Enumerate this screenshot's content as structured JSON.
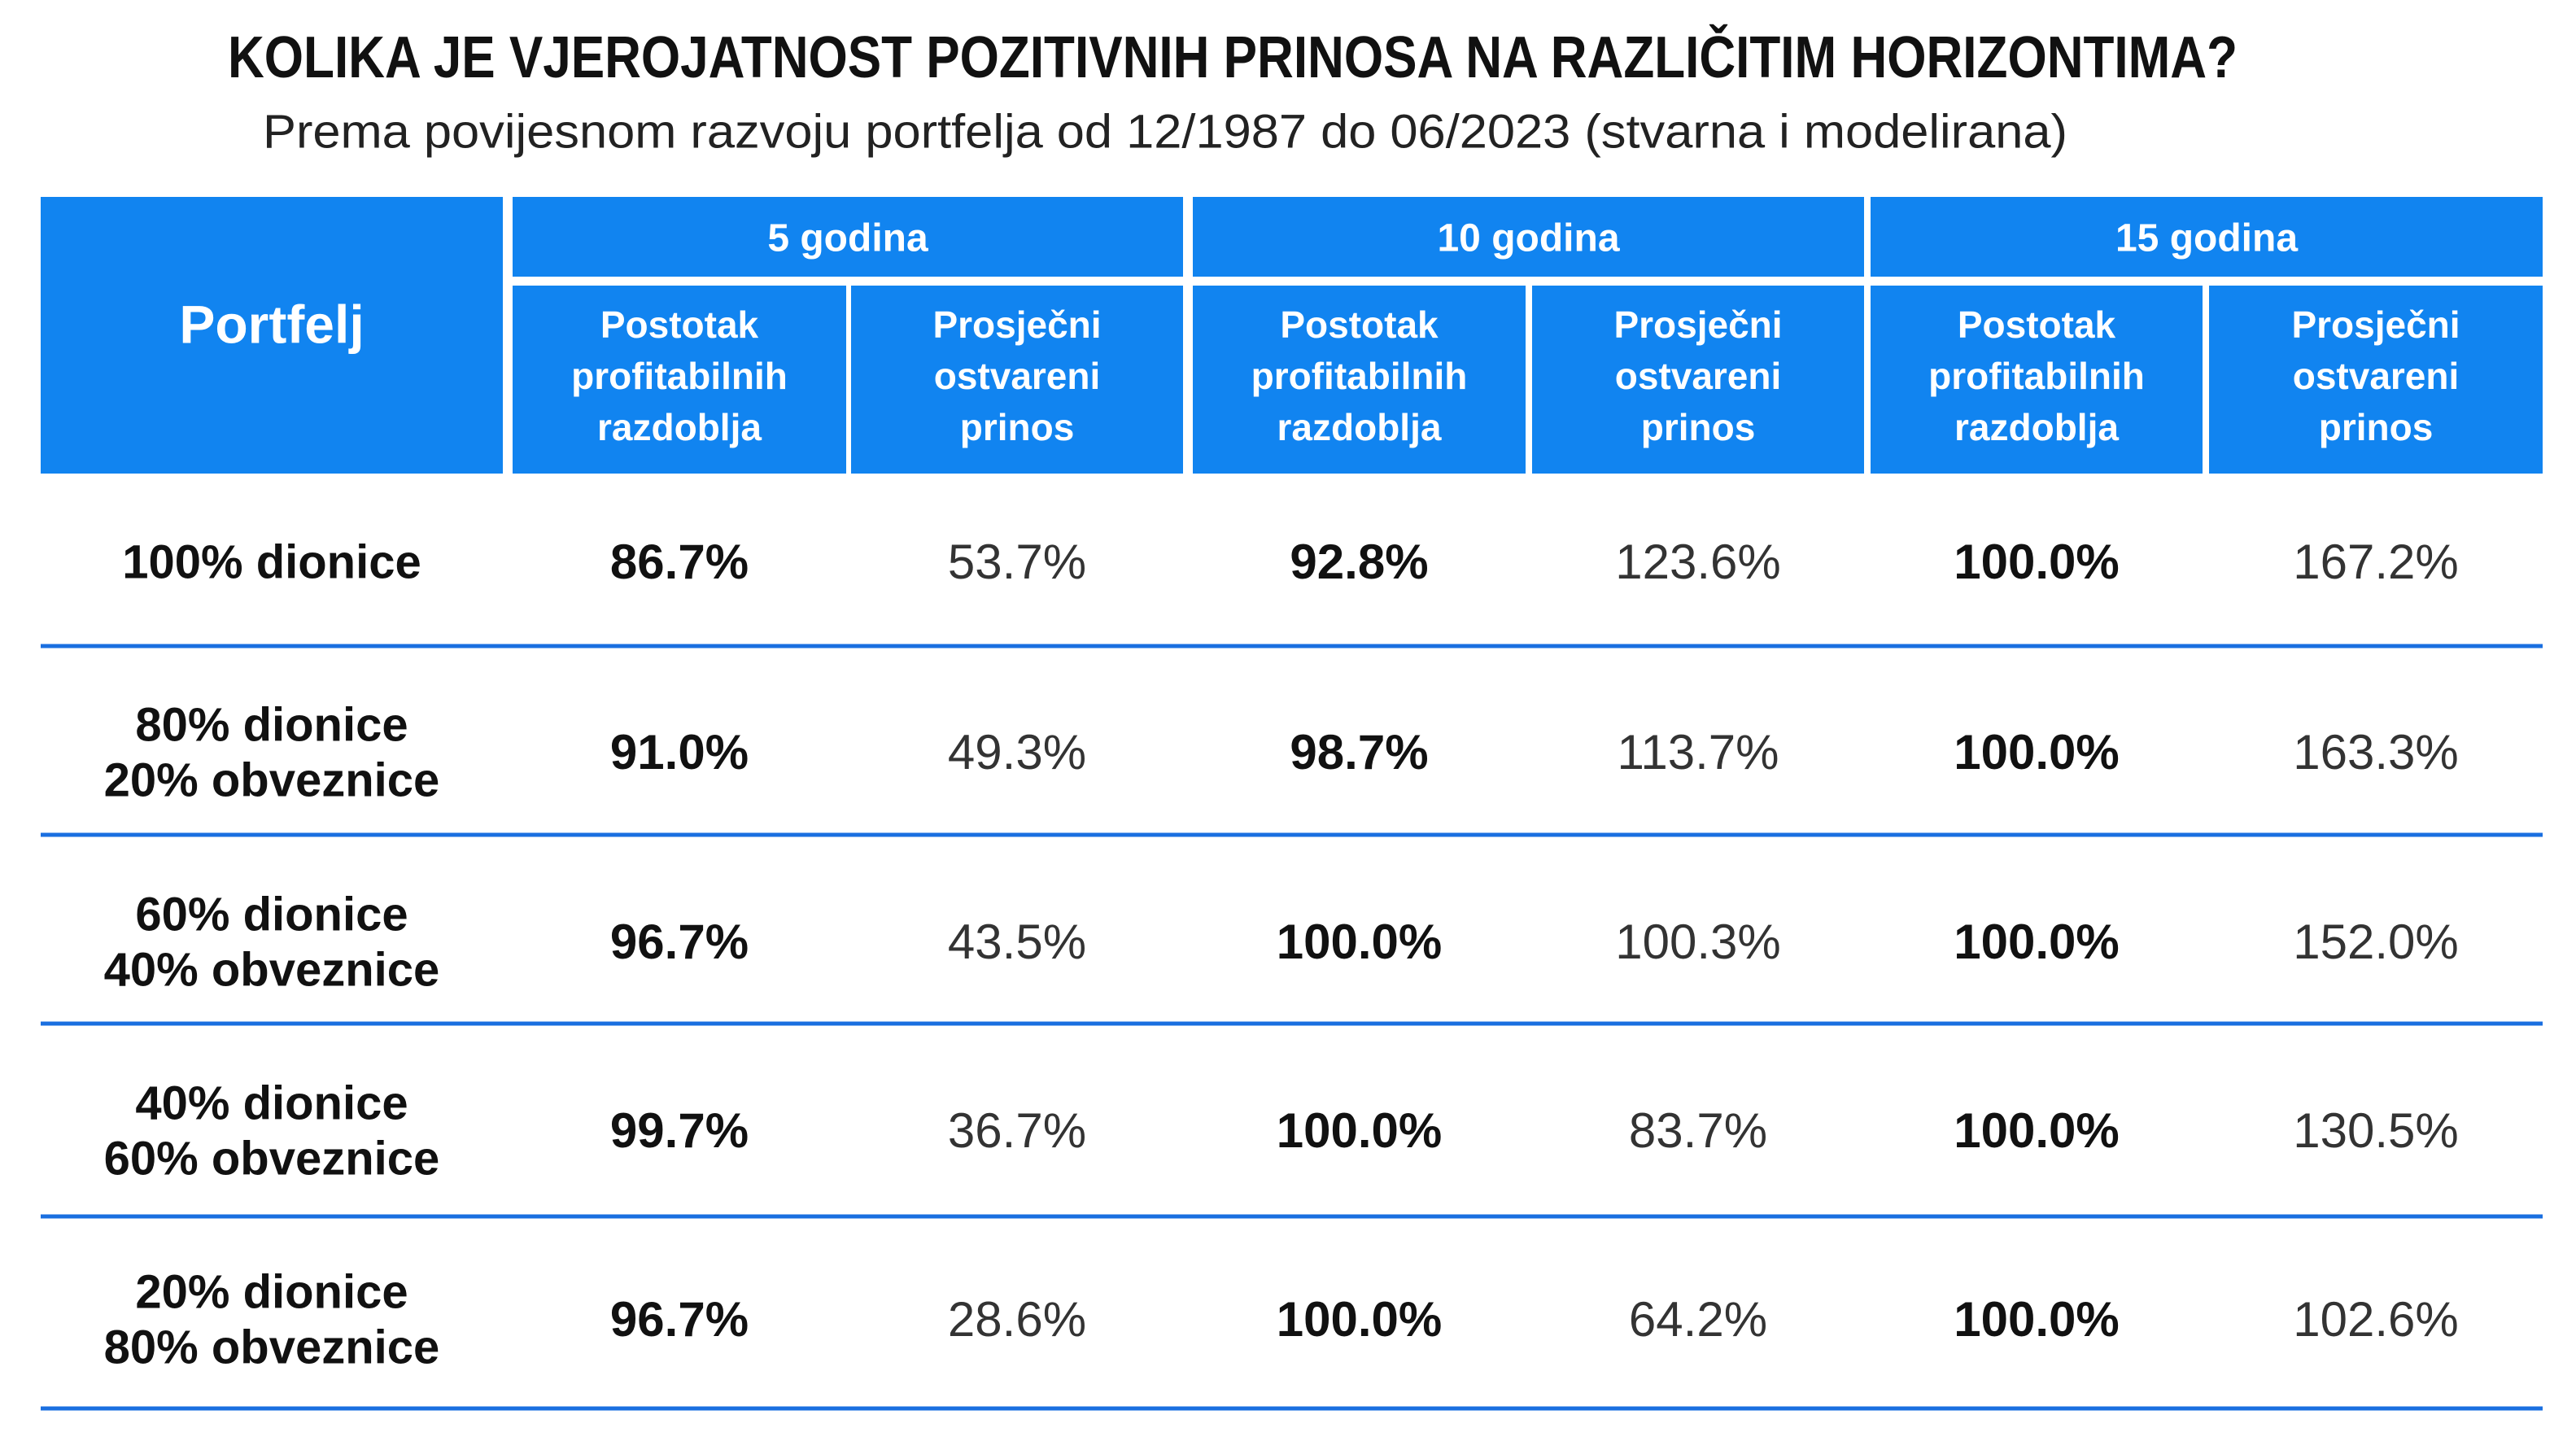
{
  "title": "KOLIKA JE VJEROJATNOST POZITIVNIH PRINOSA NA RAZLIČITIM HORIZONTIMA?",
  "subtitle": "Prema povijesnom razvoju portfelja od 12/1987 do 06/2023 (stvarna i modelirana)",
  "table": {
    "corner": "Portfelj",
    "groups": [
      {
        "label": "5 godina",
        "columns": [
          [
            "Postotak",
            "profitabilnih",
            "razdoblja"
          ],
          [
            "Prosječni",
            "ostvareni",
            "prinos"
          ]
        ]
      },
      {
        "label": "10 godina",
        "columns": [
          [
            "Postotak",
            "profitabilnih",
            "razdoblja"
          ],
          [
            "Prosječni",
            "ostvareni",
            "prinos"
          ]
        ]
      },
      {
        "label": "15 godina",
        "columns": [
          [
            "Postotak",
            "profitabilnih",
            "razdoblja"
          ],
          [
            "Prosječni",
            "ostvareni",
            "prinos"
          ]
        ]
      }
    ],
    "rows": [
      {
        "name": [
          "100% dionice"
        ],
        "cells": [
          "86.7%",
          "53.7%",
          "92.8%",
          "123.6%",
          "100.0%",
          "167.2%"
        ]
      },
      {
        "name": [
          "80% dionice",
          "20% obveznice"
        ],
        "cells": [
          "91.0%",
          "49.3%",
          "98.7%",
          "113.7%",
          "100.0%",
          "163.3%"
        ]
      },
      {
        "name": [
          "60% dionice",
          "40% obveznice"
        ],
        "cells": [
          "96.7%",
          "43.5%",
          "100.0%",
          "100.3%",
          "100.0%",
          "152.0%"
        ]
      },
      {
        "name": [
          "40% dionice",
          "60% obveznice"
        ],
        "cells": [
          "99.7%",
          "36.7%",
          "100.0%",
          "83.7%",
          "100.0%",
          "130.5%"
        ]
      },
      {
        "name": [
          "20% dionice",
          "80% obveznice"
        ],
        "cells": [
          "96.7%",
          "28.6%",
          "100.0%",
          "64.2%",
          "100.0%",
          "102.6%"
        ]
      }
    ]
  }
}
